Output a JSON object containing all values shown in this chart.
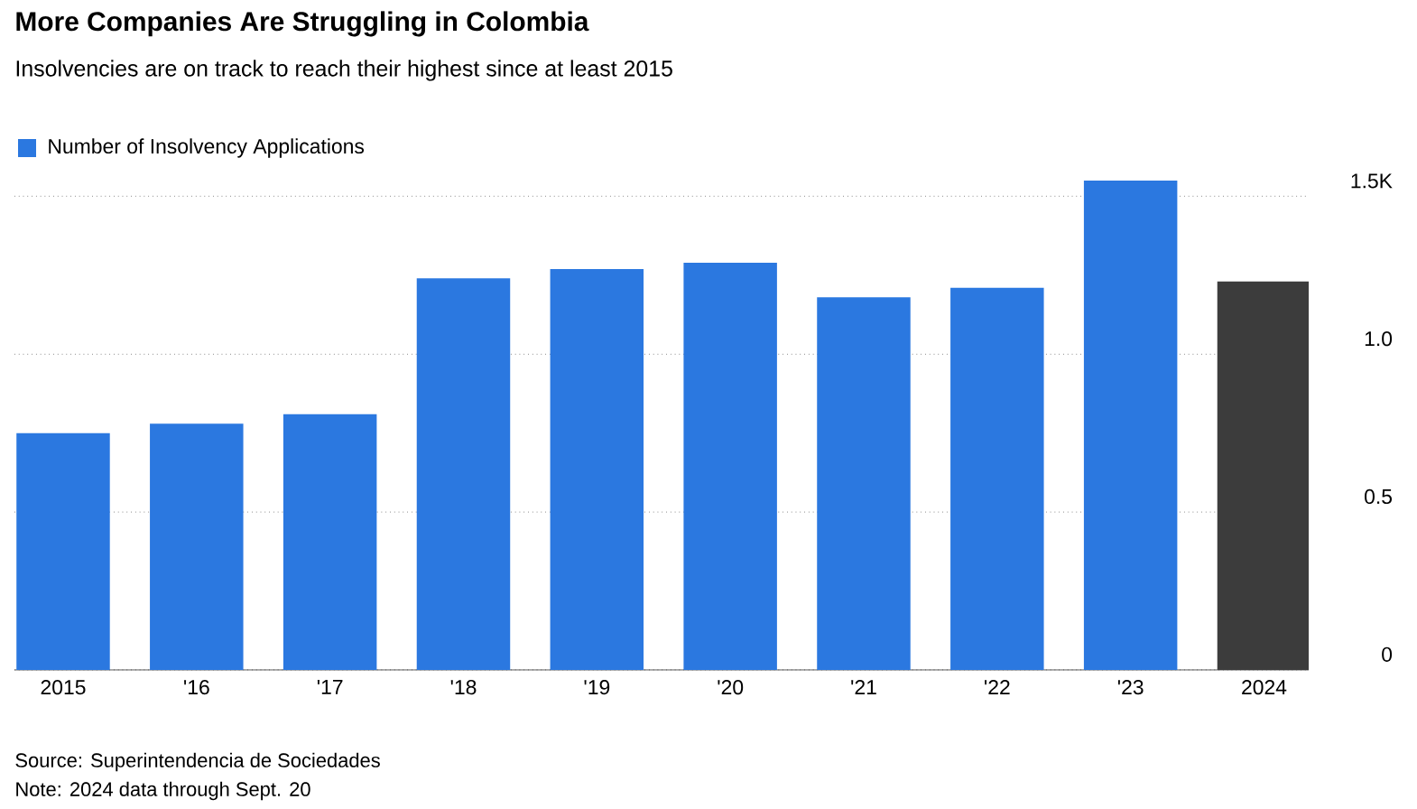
{
  "chart_data": {
    "type": "bar",
    "title": "More Companies Are Struggling in Colombia",
    "subtitle": "Insolvencies are on track to reach their highest since at least 2015",
    "categories": [
      "2015",
      "'16",
      "'17",
      "'18",
      "'19",
      "'20",
      "'21",
      "'22",
      "'23",
      "2024"
    ],
    "series": [
      {
        "name": "Number of Insolvency Applications",
        "color": "#2b78e0",
        "colors": [
          "#2b78e0",
          "#2b78e0",
          "#2b78e0",
          "#2b78e0",
          "#2b78e0",
          "#2b78e0",
          "#2b78e0",
          "#2b78e0",
          "#2b78e0",
          "#3c3c3c"
        ],
        "values": [
          0.75,
          0.78,
          0.81,
          1.24,
          1.27,
          1.29,
          1.18,
          1.21,
          1.55,
          1.23
        ]
      }
    ],
    "ylim": [
      0,
      1.55
    ],
    "yticks": [
      {
        "value": 0,
        "label": "0"
      },
      {
        "value": 0.5,
        "label": "0.5"
      },
      {
        "value": 1,
        "label": "1.0"
      },
      {
        "value": 1.5,
        "label": "1.5K"
      }
    ],
    "grid": "y",
    "legend": "top left",
    "annotations": [
      "Source: Superintendencia de Sociedades",
      "Note: 2024 data through Sept. 20"
    ]
  }
}
